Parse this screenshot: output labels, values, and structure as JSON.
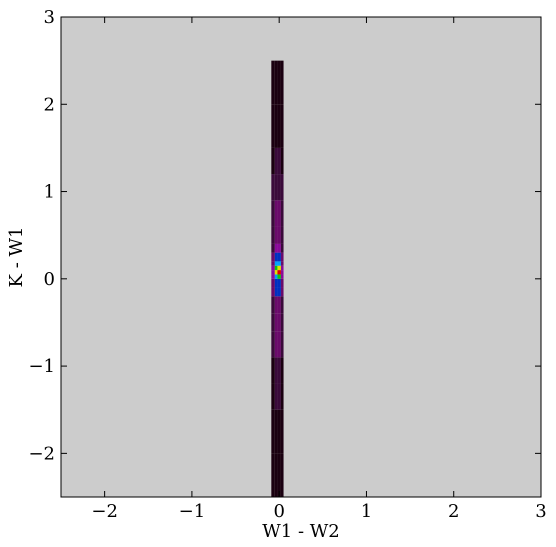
{
  "chart_data": {
    "type": "heatmap",
    "x_label": "W1 - W2",
    "y_label": "K - W1",
    "xlim": [
      -2.5,
      3
    ],
    "ylim": [
      -2.5,
      3
    ],
    "xticks": [
      {
        "value": -2,
        "label": "−2"
      },
      {
        "value": -1,
        "label": "−1"
      },
      0,
      1,
      2,
      3
    ],
    "yticks": [
      {
        "value": -2,
        "label": "−2"
      },
      {
        "value": -1,
        "label": "−1"
      },
      0,
      1,
      2,
      3
    ],
    "background": "#cccccc",
    "x_bins": [
      -0.09,
      -0.05,
      -0.02,
      0.02,
      0.05
    ],
    "y_bins": [
      -2.5,
      -2.0,
      -1.5,
      -1.2,
      -0.9,
      -0.6,
      -0.4,
      -0.2,
      -0.1,
      0,
      0.05,
      0.1,
      0.15,
      0.2,
      0.3,
      0.4,
      0.6,
      0.9,
      1.2,
      1.5,
      2.0,
      2.5
    ],
    "values": [
      [
        2,
        3,
        3,
        2
      ],
      [
        4,
        6,
        6,
        4
      ],
      [
        8,
        12,
        12,
        8
      ],
      [
        10,
        18,
        18,
        10
      ],
      [
        14,
        24,
        24,
        14
      ],
      [
        18,
        28,
        28,
        18
      ],
      [
        20,
        32,
        32,
        20
      ],
      [
        25,
        45,
        45,
        25
      ],
      [
        30,
        55,
        55,
        30
      ],
      [
        35,
        65,
        70,
        35
      ],
      [
        40,
        80,
        95,
        40
      ],
      [
        38,
        75,
        85,
        38
      ],
      [
        33,
        60,
        62,
        33
      ],
      [
        28,
        48,
        48,
        28
      ],
      [
        22,
        36,
        36,
        22
      ],
      [
        18,
        30,
        30,
        18
      ],
      [
        15,
        26,
        26,
        15
      ],
      [
        12,
        20,
        20,
        12
      ],
      [
        9,
        14,
        14,
        9
      ],
      [
        5,
        8,
        8,
        5
      ],
      [
        1,
        2,
        2,
        1
      ]
    ],
    "vmax": 100,
    "colormap": [
      "#1a0010",
      "#3a0a3a",
      "#6a0a6a",
      "#8a0a9a",
      "#0030c0",
      "#00a0ff",
      "#10c010",
      "#e0e000",
      "#e00000"
    ]
  }
}
